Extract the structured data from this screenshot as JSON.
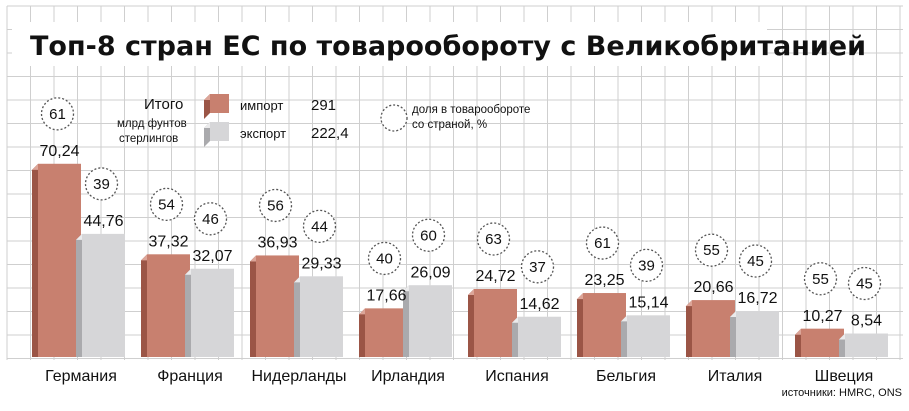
{
  "chart_data": {
    "type": "bar",
    "title": "Топ-8 стран ЕС по товарообороту с Великобританией",
    "categories": [
      "Германия",
      "Франция",
      "Нидерланды",
      "Ирландия",
      "Испания",
      "Бельгия",
      "Италия",
      "Швеция"
    ],
    "series": [
      {
        "name": "импорт",
        "values": [
          70.24,
          37.32,
          36.93,
          17.66,
          24.72,
          23.25,
          20.66,
          10.27
        ],
        "shares": [
          61,
          54,
          56,
          40,
          63,
          61,
          55,
          55
        ]
      },
      {
        "name": "экспорт",
        "values": [
          44.76,
          32.07,
          29.33,
          26.09,
          14.62,
          15.14,
          16.72,
          8.54
        ],
        "shares": [
          39,
          46,
          44,
          60,
          37,
          39,
          45,
          45
        ]
      }
    ],
    "value_labels": {
      "import": [
        "70,24",
        "37,32",
        "36,93",
        "17,66",
        "24,72",
        "23,25",
        "20,66",
        "10,27"
      ],
      "export": [
        "44,76",
        "32,07",
        "29,33",
        "26,09",
        "14,62",
        "15,14",
        "16,72",
        "8,54"
      ]
    },
    "ylim": [
      0,
      75
    ],
    "grid": true,
    "legend": {
      "total_label": "Итого",
      "unit_label_line1": "млрд фунтов",
      "unit_label_line2": "стерлингов",
      "import_label": "импорт",
      "import_total": "291",
      "export_label": "экспорт",
      "export_total": "222,4",
      "share_label_line1": "доля в товарообороте",
      "share_label_line2": "со страной, %"
    },
    "source": "источники: HMRC, ONS",
    "colors": {
      "import_front": "#c8806f",
      "import_side": "#9b5546",
      "import_top": "#dca598",
      "export_front": "#d6d6d8",
      "export_side": "#aaaaad",
      "export_top": "#ebebec",
      "grid": "#cfcfcf"
    }
  }
}
